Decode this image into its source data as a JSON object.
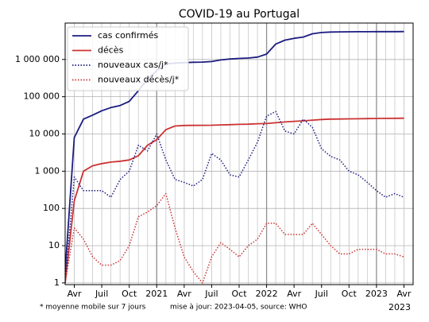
{
  "chart_data": {
    "type": "line",
    "title": "COVID-19 au Portugal",
    "log_y": true,
    "grid": true,
    "legend": "upper left",
    "x": [
      "2020-03",
      "2020-04",
      "2020-05",
      "2020-06",
      "2020-07",
      "2020-08",
      "2020-09",
      "2020-10",
      "2020-11",
      "2020-12",
      "2021-01",
      "2021-02",
      "2021-03",
      "2021-04",
      "2021-05",
      "2021-06",
      "2021-07",
      "2021-08",
      "2021-09",
      "2021-10",
      "2021-11",
      "2021-12",
      "2022-01",
      "2022-02",
      "2022-03",
      "2022-04",
      "2022-05",
      "2022-06",
      "2022-07",
      "2022-08",
      "2022-09",
      "2022-10",
      "2022-11",
      "2022-12",
      "2023-01",
      "2023-02",
      "2023-03",
      "2023-04"
    ],
    "series": [
      {
        "name": "cas confirmés",
        "color": "#1c1c80",
        "style": "solid",
        "values": [
          2,
          8000,
          25000,
          32000,
          42000,
          51000,
          58000,
          75000,
          145000,
          300000,
          500000,
          760000,
          800000,
          820000,
          840000,
          850000,
          880000,
          970000,
          1030000,
          1065000,
          1090000,
          1160000,
          1400000,
          2600000,
          3300000,
          3700000,
          4000000,
          4900000,
          5300000,
          5450000,
          5500000,
          5520000,
          5550000,
          5570000,
          5580000,
          5590000,
          5600000,
          5610000
        ]
      },
      {
        "name": "décès",
        "color": "#cc3333",
        "style": "solid",
        "values": [
          1,
          160,
          1000,
          1400,
          1600,
          1750,
          1850,
          2000,
          2600,
          5000,
          7000,
          13000,
          16300,
          16900,
          17000,
          17050,
          17200,
          17500,
          17800,
          18100,
          18300,
          18800,
          19000,
          20000,
          21000,
          21800,
          22500,
          23500,
          24500,
          25000,
          25200,
          25400,
          25600,
          25800,
          26000,
          26200,
          26300,
          26400
        ]
      },
      {
        "name": "nouveaux cas/j*",
        "color": "#1c1c80",
        "style": "dotted",
        "values": [
          1,
          700,
          300,
          300,
          300,
          200,
          600,
          1000,
          5000,
          3500,
          10000,
          2000,
          600,
          500,
          400,
          600,
          3000,
          2000,
          800,
          700,
          2000,
          6000,
          30000,
          40000,
          12000,
          10000,
          25000,
          15000,
          4000,
          2500,
          2000,
          1000,
          800,
          500,
          300,
          200,
          250,
          200
        ]
      },
      {
        "name": "nouveaux décès/j*",
        "color": "#cc3333",
        "style": "dotted",
        "values": [
          1,
          30,
          15,
          5,
          3,
          3,
          4,
          10,
          60,
          80,
          120,
          250,
          30,
          5,
          2,
          1,
          5,
          12,
          8,
          5,
          10,
          15,
          40,
          40,
          20,
          20,
          20,
          40,
          20,
          10,
          6,
          6,
          8,
          8,
          8,
          6,
          6,
          5
        ]
      }
    ],
    "xlim": [
      "2020-03",
      "2023-05"
    ],
    "xticks": [
      {
        "value": "2020-04",
        "label": "Avr"
      },
      {
        "value": "2020-07",
        "label": "Juil"
      },
      {
        "value": "2020-10",
        "label": "Oct"
      },
      {
        "value": "2021-01",
        "label": "2021"
      },
      {
        "value": "2021-04",
        "label": "Avr"
      },
      {
        "value": "2021-07",
        "label": "Juil"
      },
      {
        "value": "2021-10",
        "label": "Oct"
      },
      {
        "value": "2022-01",
        "label": "2022"
      },
      {
        "value": "2022-04",
        "label": "Avr"
      },
      {
        "value": "2022-07",
        "label": "Juil"
      },
      {
        "value": "2022-10",
        "label": "Oct"
      },
      {
        "value": "2023-01",
        "label": "2023"
      },
      {
        "value": "2023-04",
        "label": "Avr"
      }
    ],
    "x_offset_label": "2023",
    "ylim": [
      0.9,
      9500000
    ],
    "yticks": [
      1,
      10,
      {
        "value": 100,
        "label": "100"
      },
      {
        "value": 1000,
        "label": "1 000"
      },
      {
        "value": 10000,
        "label": "10 000"
      },
      {
        "value": 100000,
        "label": "100 000"
      },
      {
        "value": 1000000,
        "label": "1 000 000"
      }
    ],
    "footnote": "* moyenne mobile sur 7 jours",
    "update_note": "mise à jour: 2023-04-05, source: WHO"
  }
}
